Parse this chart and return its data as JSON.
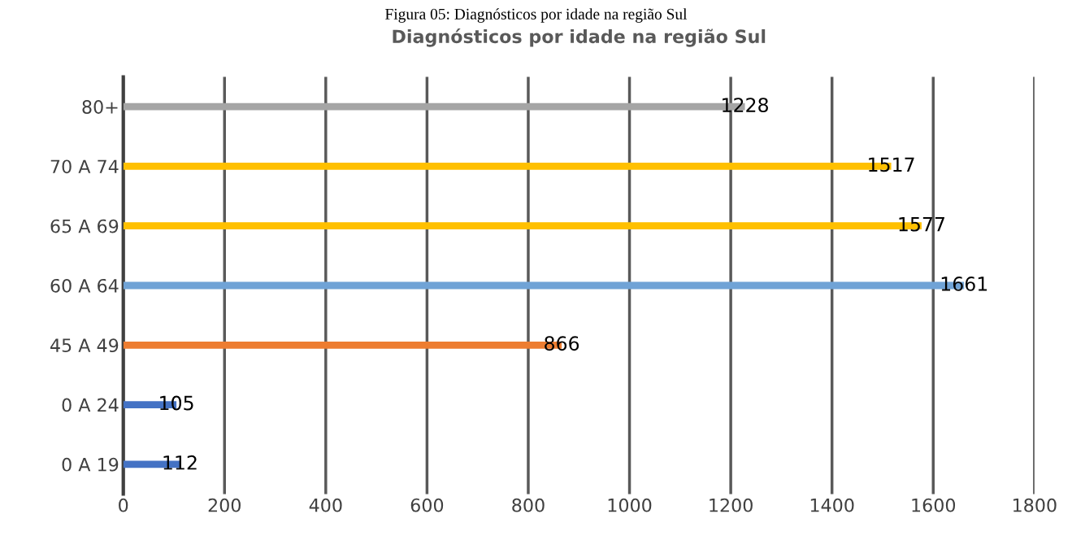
{
  "chart_data": {
    "type": "bar",
    "orientation": "horizontal",
    "title": "Diagnósticos por idade na região Sul",
    "annotations": [
      "Figura 05: Diagnósticos por idade na região Sul"
    ],
    "categories": [
      "80+",
      "70 A 74",
      "65 A 69",
      "60 A 64",
      "45 A 49",
      "0 A 24",
      "0 A 19"
    ],
    "values": [
      1228,
      1517,
      1577,
      1661,
      866,
      105,
      112
    ],
    "colors": [
      "#a5a5a5",
      "#ffc000",
      "#ffc000",
      "#70a3d6",
      "#ed7d31",
      "#4472c4",
      "#4472c4"
    ],
    "data_labels": true,
    "xlim": [
      0,
      1800
    ],
    "xticks": [
      0,
      200,
      400,
      600,
      800,
      1000,
      1200,
      1400,
      1600,
      1800
    ],
    "grid": "x",
    "legend": false
  }
}
